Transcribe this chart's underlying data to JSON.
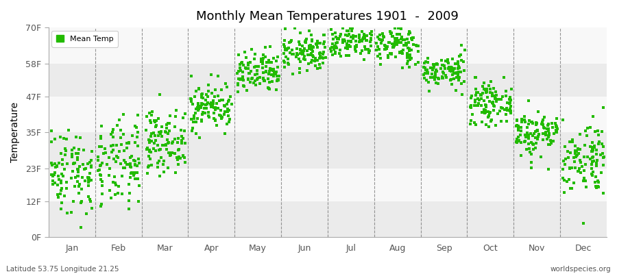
{
  "title": "Monthly Mean Temperatures 1901  -  2009",
  "ylabel": "Temperature",
  "ytick_labels": [
    "0F",
    "12F",
    "23F",
    "35F",
    "47F",
    "58F",
    "70F"
  ],
  "ytick_values": [
    0,
    12,
    23,
    35,
    47,
    58,
    70
  ],
  "months": [
    "Jan",
    "Feb",
    "Mar",
    "Apr",
    "May",
    "Jun",
    "Jul",
    "Aug",
    "Sep",
    "Oct",
    "Nov",
    "Dec"
  ],
  "dot_color": "#22bb00",
  "figure_bg": "#ffffff",
  "plot_bg": "#ffffff",
  "band_light": "#ebebeb",
  "band_white": "#f8f8f8",
  "footer_left": "Latitude 53.75 Longitude 21.25",
  "footer_right": "worldspecies.org",
  "legend_label": "Mean Temp",
  "ylim": [
    0,
    70
  ],
  "mean_temps_C": [
    -5.5,
    -4.5,
    0.0,
    6.5,
    12.5,
    16.5,
    18.8,
    17.8,
    13.0,
    7.0,
    1.5,
    -3.0
  ],
  "std_temps": [
    4.0,
    4.0,
    2.8,
    2.2,
    2.0,
    1.8,
    1.8,
    1.8,
    1.5,
    1.8,
    2.2,
    3.5
  ],
  "n_years": 109
}
